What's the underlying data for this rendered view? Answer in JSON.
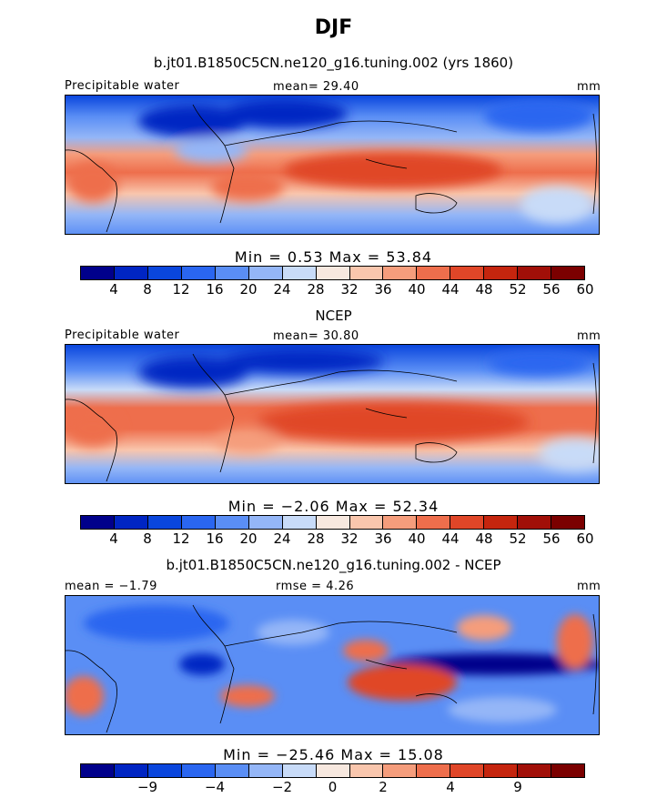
{
  "figure": {
    "title": "DJF"
  },
  "panels": [
    {
      "subtitle": "b.jt01.B1850C5CN.ne120_g16.tuning.002 (yrs 1860)",
      "left_label": "Precipitable water",
      "center_label": "mean=  29.40",
      "right_label": "mm",
      "minmax": "Min =    0.53  Max =  53.84",
      "colorbar": {
        "colors": [
          "#00008b",
          "#0025c3",
          "#0a46dd",
          "#2a66f0",
          "#5a8ef5",
          "#94b6f7",
          "#c8dbf8",
          "#f7e8df",
          "#f9c6ad",
          "#f59d7c",
          "#ee6e4c",
          "#e04628",
          "#c5250e",
          "#a10f08",
          "#7b0000"
        ],
        "tick_labels": [
          "4",
          "8",
          "12",
          "16",
          "20",
          "24",
          "28",
          "32",
          "36",
          "40",
          "44",
          "48",
          "52",
          "56",
          "60"
        ]
      }
    },
    {
      "subtitle": "NCEP",
      "left_label": "Precipitable water",
      "center_label": "mean=  30.80",
      "right_label": "mm",
      "minmax": "Min =   −2.06  Max =  52.34",
      "colorbar": {
        "colors": [
          "#00008b",
          "#0025c3",
          "#0a46dd",
          "#2a66f0",
          "#5a8ef5",
          "#94b6f7",
          "#c8dbf8",
          "#f7e8df",
          "#f9c6ad",
          "#f59d7c",
          "#ee6e4c",
          "#e04628",
          "#c5250e",
          "#a10f08",
          "#7b0000"
        ],
        "tick_labels": [
          "4",
          "8",
          "12",
          "16",
          "20",
          "24",
          "28",
          "32",
          "36",
          "40",
          "44",
          "48",
          "52",
          "56",
          "60"
        ]
      }
    },
    {
      "subtitle": "b.jt01.B1850C5CN.ne120_g16.tuning.002 - NCEP",
      "left_label": "mean =  −1.79",
      "center_label": "rmse =   4.26",
      "right_label": "mm",
      "minmax": "Min =  −25.46  Max =  15.08",
      "colorbar": {
        "colors": [
          "#00008b",
          "#0025c3",
          "#0a46dd",
          "#2a66f0",
          "#5a8ef5",
          "#94b6f7",
          "#c8dbf8",
          "#f7e8df",
          "#f9c6ad",
          "#f59d7c",
          "#ee6e4c",
          "#e04628",
          "#c5250e",
          "#a10f08",
          "#7b0000"
        ],
        "tick_labels": [
          "−9",
          "−4",
          "−2",
          "0",
          "2",
          "4",
          "9"
        ]
      }
    }
  ]
}
